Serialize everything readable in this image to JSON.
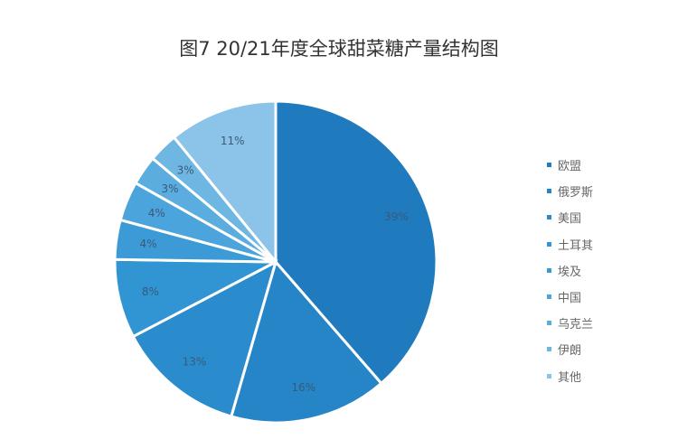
{
  "chart_data": {
    "type": "pie",
    "title": "图7  20/21年度全球甜菜糖产量结构图",
    "categories": [
      "欧盟",
      "俄罗斯",
      "美国",
      "土耳其",
      "埃及",
      "中国",
      "乌克兰",
      "伊朗",
      "其他"
    ],
    "values": [
      39,
      16,
      13,
      8,
      4,
      4,
      3,
      3,
      11
    ],
    "labels": [
      "39%",
      "16%",
      "13%",
      "8%",
      "4%",
      "4%",
      "3%",
      "3%",
      "11%"
    ],
    "colors": [
      "#1f7bbd",
      "#2585c6",
      "#2a8ccd",
      "#3194d3",
      "#3c9bd7",
      "#4ba4db",
      "#5caddf",
      "#6fb7e3",
      "#8cc3e8"
    ],
    "legend_position": "right"
  }
}
